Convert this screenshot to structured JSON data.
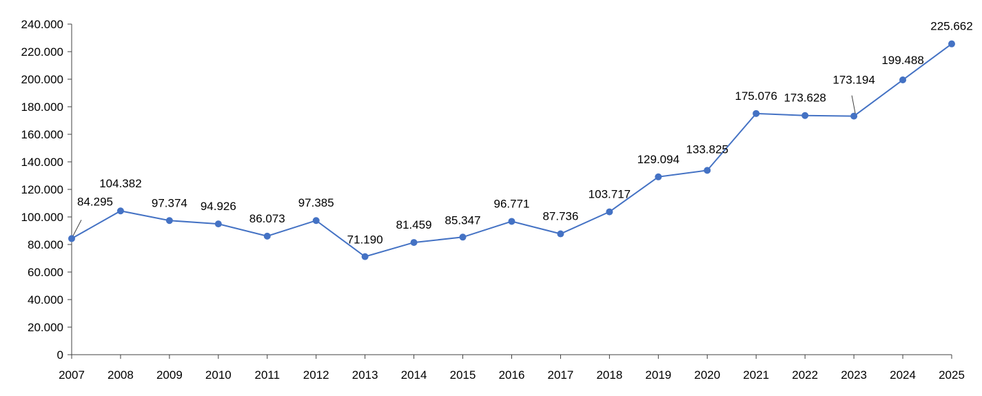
{
  "chart_data": {
    "type": "line",
    "title": "",
    "xlabel": "",
    "ylabel": "",
    "categories": [
      "2007",
      "2008",
      "2009",
      "2010",
      "2011",
      "2012",
      "2013",
      "2014",
      "2015",
      "2016",
      "2017",
      "2018",
      "2019",
      "2020",
      "2021",
      "2022",
      "2023",
      "2024",
      "2025"
    ],
    "series": [
      {
        "values": [
          84295,
          104382,
          97374,
          94926,
          86073,
          97385,
          71190,
          81459,
          85347,
          96771,
          87736,
          103717,
          129094,
          133825,
          175076,
          173628,
          173194,
          199488,
          225662
        ],
        "labels": [
          "84.295",
          "104.382",
          "97.374",
          "94.926",
          "86.073",
          "97.385",
          "71.190",
          "81.459",
          "85.347",
          "96.771",
          "87.736",
          "103.717",
          "129.094",
          "133.825",
          "175.076",
          "173.628",
          "173.194",
          "199.488",
          "225.662"
        ],
        "color": "#4472C4"
      }
    ],
    "ylim": [
      0,
      240000
    ],
    "yticks": [
      0,
      20000,
      40000,
      60000,
      80000,
      100000,
      120000,
      140000,
      160000,
      180000,
      200000,
      220000,
      240000
    ],
    "ytick_labels": [
      "0",
      "20.000",
      "40.000",
      "60.000",
      "80.000",
      "100.000",
      "120.000",
      "140.000",
      "160.000",
      "180.000",
      "200.000",
      "220.000",
      "240.000"
    ],
    "grid": false,
    "legend": "none"
  }
}
